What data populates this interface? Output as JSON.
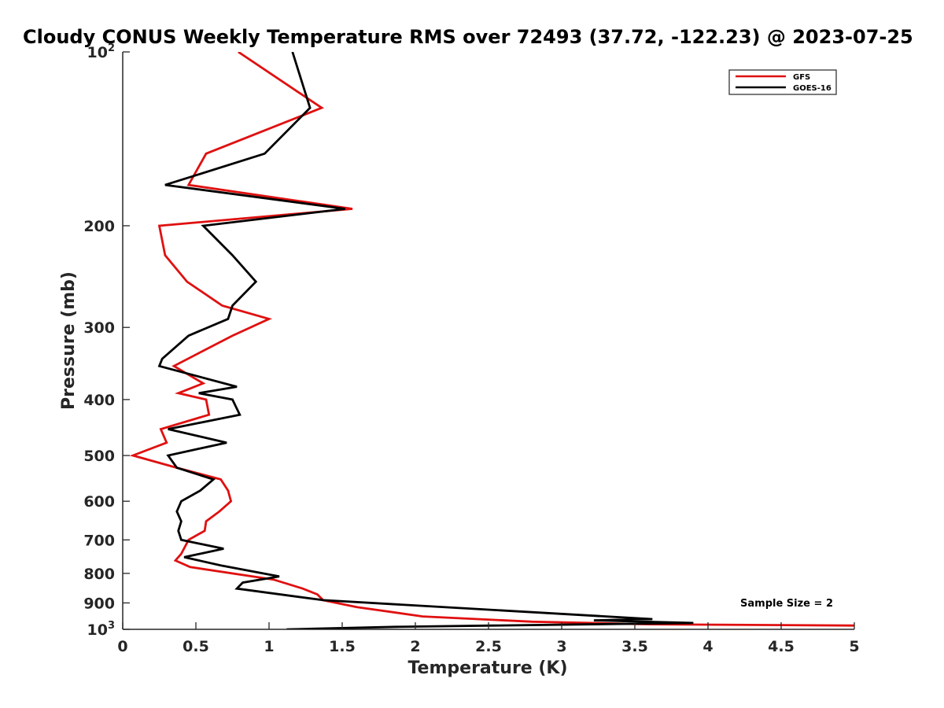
{
  "chart_data": {
    "type": "line",
    "title": "Cloudy CONUS Weekly Temperature RMS over 72493 (37.72, -122.23) @ 2023-07-25",
    "xlabel": "Temperature (K)",
    "ylabel": "Pressure (mb)",
    "xlim": [
      0,
      5
    ],
    "ylim": [
      100,
      1000
    ],
    "y_scale": "log",
    "y_reversed": true,
    "x_ticks": [
      "0",
      "0.5",
      "1",
      "1.5",
      "2",
      "2.5",
      "3",
      "3.5",
      "4",
      "4.5",
      "5"
    ],
    "x_tick_values": [
      0,
      0.5,
      1,
      1.5,
      2,
      2.5,
      3,
      3.5,
      4,
      4.5,
      5
    ],
    "y_ticks": [
      {
        "value": 100,
        "base": "10",
        "exp": "2"
      },
      {
        "value": 200,
        "label": "200"
      },
      {
        "value": 300,
        "label": "300"
      },
      {
        "value": 400,
        "label": "400"
      },
      {
        "value": 500,
        "label": "500"
      },
      {
        "value": 600,
        "label": "600"
      },
      {
        "value": 700,
        "label": "700"
      },
      {
        "value": 800,
        "label": "800"
      },
      {
        "value": 900,
        "label": "900"
      },
      {
        "value": 1000,
        "base": "10",
        "exp": "3"
      }
    ],
    "grid": false,
    "legend_position": "top-right",
    "annotation": "Sample Size = 2",
    "series": [
      {
        "name": "GFS",
        "color": "#e01010",
        "points": [
          [
            0.79,
            100
          ],
          [
            1.36,
            125
          ],
          [
            0.57,
            150
          ],
          [
            0.45,
            170
          ],
          [
            1.57,
            187
          ],
          [
            0.25,
            200
          ],
          [
            0.29,
            225
          ],
          [
            0.44,
            250
          ],
          [
            0.68,
            275
          ],
          [
            1.0,
            290
          ],
          [
            0.75,
            310
          ],
          [
            0.35,
            350
          ],
          [
            0.55,
            375
          ],
          [
            0.38,
            390
          ],
          [
            0.57,
            400
          ],
          [
            0.59,
            425
          ],
          [
            0.26,
            450
          ],
          [
            0.3,
            475
          ],
          [
            0.07,
            500
          ],
          [
            0.37,
            525
          ],
          [
            0.67,
            550
          ],
          [
            0.72,
            575
          ],
          [
            0.74,
            600
          ],
          [
            0.66,
            625
          ],
          [
            0.57,
            650
          ],
          [
            0.56,
            675
          ],
          [
            0.45,
            700
          ],
          [
            0.4,
            740
          ],
          [
            0.36,
            760
          ],
          [
            0.46,
            780
          ],
          [
            1.03,
            820
          ],
          [
            1.23,
            850
          ],
          [
            1.33,
            870
          ],
          [
            1.37,
            890
          ],
          [
            1.6,
            915
          ],
          [
            2.05,
            950
          ],
          [
            2.8,
            970
          ],
          [
            3.6,
            980
          ],
          [
            5.0,
            985
          ]
        ]
      },
      {
        "name": "GOES-16",
        "color": "#000000",
        "points": [
          [
            1.16,
            100
          ],
          [
            1.28,
            125
          ],
          [
            0.97,
            150
          ],
          [
            0.29,
            170
          ],
          [
            1.52,
            187
          ],
          [
            0.55,
            200
          ],
          [
            0.75,
            225
          ],
          [
            0.91,
            250
          ],
          [
            0.75,
            275
          ],
          [
            0.72,
            290
          ],
          [
            0.45,
            310
          ],
          [
            0.27,
            340
          ],
          [
            0.25,
            350
          ],
          [
            0.78,
            380
          ],
          [
            0.52,
            390
          ],
          [
            0.75,
            400
          ],
          [
            0.8,
            425
          ],
          [
            0.31,
            450
          ],
          [
            0.71,
            475
          ],
          [
            0.31,
            500
          ],
          [
            0.37,
            525
          ],
          [
            0.62,
            550
          ],
          [
            0.53,
            575
          ],
          [
            0.4,
            600
          ],
          [
            0.37,
            625
          ],
          [
            0.4,
            650
          ],
          [
            0.38,
            675
          ],
          [
            0.4,
            700
          ],
          [
            0.69,
            725
          ],
          [
            0.42,
            750
          ],
          [
            0.67,
            775
          ],
          [
            1.07,
            810
          ],
          [
            0.82,
            830
          ],
          [
            0.78,
            850
          ],
          [
            1.37,
            890
          ],
          [
            3.62,
            960
          ],
          [
            3.22,
            965
          ],
          [
            3.9,
            975
          ],
          [
            1.87,
            990
          ],
          [
            1.12,
            1000
          ]
        ]
      }
    ]
  }
}
